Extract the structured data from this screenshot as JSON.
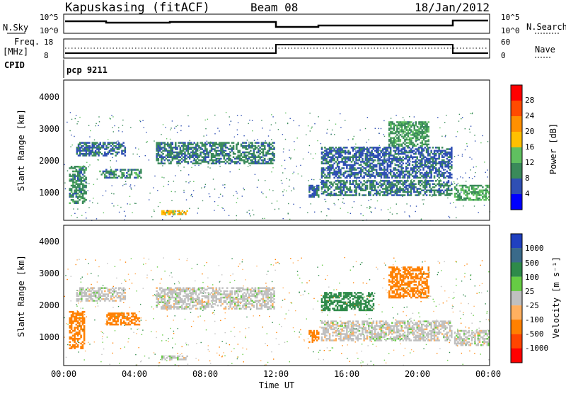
{
  "header": {
    "station": "Kapuskasing (fitACF)",
    "beam": "Beam 08",
    "date": "18/Jan/2012"
  },
  "strip": {
    "nsky_label": "N.Sky",
    "nsky_ticks": [
      "10^5",
      "10^0"
    ],
    "nsearch_label": "N.Search",
    "nsearch_ticks": [
      "10^5",
      "10^0"
    ],
    "freq_label": "Freq.",
    "freq_unit": "[MHz]",
    "freq_ticks": [
      "18",
      "8"
    ],
    "nave_label": "Nave",
    "nave_ticks": [
      "60",
      "0"
    ],
    "cpid_label": "CPID",
    "program": "pcp 9211"
  },
  "panels": {
    "ylabel": "Slant Range [km]",
    "y_ticks": [
      "4000",
      "3000",
      "2000",
      "1000"
    ],
    "xlabel": "Time UT",
    "x_ticks": [
      "00:00",
      "04:00",
      "08:00",
      "12:00",
      "16:00",
      "20:00",
      "00:00"
    ]
  },
  "power_colorbar": {
    "label": "Power [dB]",
    "ticks": [
      "28",
      "24",
      "20",
      "16",
      "12",
      "8",
      "4"
    ],
    "colors": [
      "#ff0000",
      "#ff4b00",
      "#ff9000",
      "#ffc000",
      "#60c060",
      "#3a8a5a",
      "#2f4fb4",
      "#0000ff"
    ]
  },
  "velocity_colorbar": {
    "label": "Velocity [m s⁻¹]",
    "ticks": [
      "1000",
      "500",
      "100",
      "25",
      "-25",
      "-100",
      "-500",
      "-1000"
    ],
    "colors": [
      "#2040c0",
      "#3a6a8a",
      "#2e8a4a",
      "#66cc44",
      "#c0c0c0",
      "#ffb060",
      "#ff8000",
      "#ff4500",
      "#ff0000"
    ]
  },
  "chart_data": [
    {
      "type": "heatmap",
      "title": "Power",
      "xlabel": "Time UT",
      "ylabel": "Slant Range [km]",
      "xlim": [
        0,
        24
      ],
      "ylim": [
        180,
        4600
      ],
      "colorbar_range": [
        0,
        32
      ],
      "regions": [
        {
          "t0": 0.3,
          "t1": 1.3,
          "r0": 700,
          "r1": 1900,
          "db": 10
        },
        {
          "t0": 0.7,
          "t1": 3.5,
          "r0": 2200,
          "r1": 2650,
          "db": 8
        },
        {
          "t0": 2.0,
          "t1": 4.4,
          "r0": 1500,
          "r1": 1800,
          "db": 10
        },
        {
          "t0": 5.2,
          "t1": 11.9,
          "r0": 1950,
          "r1": 2650,
          "db": 9
        },
        {
          "t0": 5.5,
          "t1": 7.0,
          "r0": 350,
          "r1": 500,
          "db": 18
        },
        {
          "t0": 13.8,
          "t1": 14.4,
          "r0": 900,
          "r1": 1300,
          "db": 8
        },
        {
          "t0": 14.5,
          "t1": 21.9,
          "r0": 950,
          "r1": 1450,
          "db": 9
        },
        {
          "t0": 14.5,
          "t1": 21.9,
          "r0": 1500,
          "r1": 2500,
          "db": 7
        },
        {
          "t0": 18.3,
          "t1": 20.6,
          "r0": 2500,
          "r1": 3300,
          "db": 11
        },
        {
          "t0": 22.0,
          "t1": 24.0,
          "r0": 800,
          "r1": 1300,
          "db": 12
        }
      ]
    },
    {
      "type": "heatmap",
      "title": "Velocity",
      "xlabel": "Time UT",
      "ylabel": "Slant Range [km]",
      "xlim": [
        0,
        24
      ],
      "ylim": [
        180,
        4600
      ],
      "colorbar_range": [
        -1000,
        1000
      ],
      "regions": [
        {
          "t0": 0.3,
          "t1": 1.2,
          "r0": 700,
          "r1": 1900,
          "vel": -300
        },
        {
          "t0": 2.4,
          "t1": 4.3,
          "r0": 1450,
          "r1": 1850,
          "vel": -300
        },
        {
          "t0": 0.7,
          "t1": 3.5,
          "r0": 2200,
          "r1": 2650,
          "vel": 0
        },
        {
          "t0": 5.2,
          "t1": 11.9,
          "r0": 1950,
          "r1": 2650,
          "vel": 0
        },
        {
          "t0": 5.5,
          "t1": 7.0,
          "r0": 350,
          "r1": 500,
          "vel": 0
        },
        {
          "t0": 13.8,
          "t1": 14.4,
          "r0": 900,
          "r1": 1300,
          "vel": -200
        },
        {
          "t0": 14.5,
          "t1": 21.9,
          "r0": 950,
          "r1": 1600,
          "vel": 0
        },
        {
          "t0": 14.5,
          "t1": 17.5,
          "r0": 1900,
          "r1": 2500,
          "vel": 150
        },
        {
          "t0": 18.3,
          "t1": 20.6,
          "r0": 2300,
          "r1": 3300,
          "vel": -300
        },
        {
          "t0": 22.0,
          "t1": 24.0,
          "r0": 800,
          "r1": 1300,
          "vel": 0
        }
      ]
    }
  ]
}
